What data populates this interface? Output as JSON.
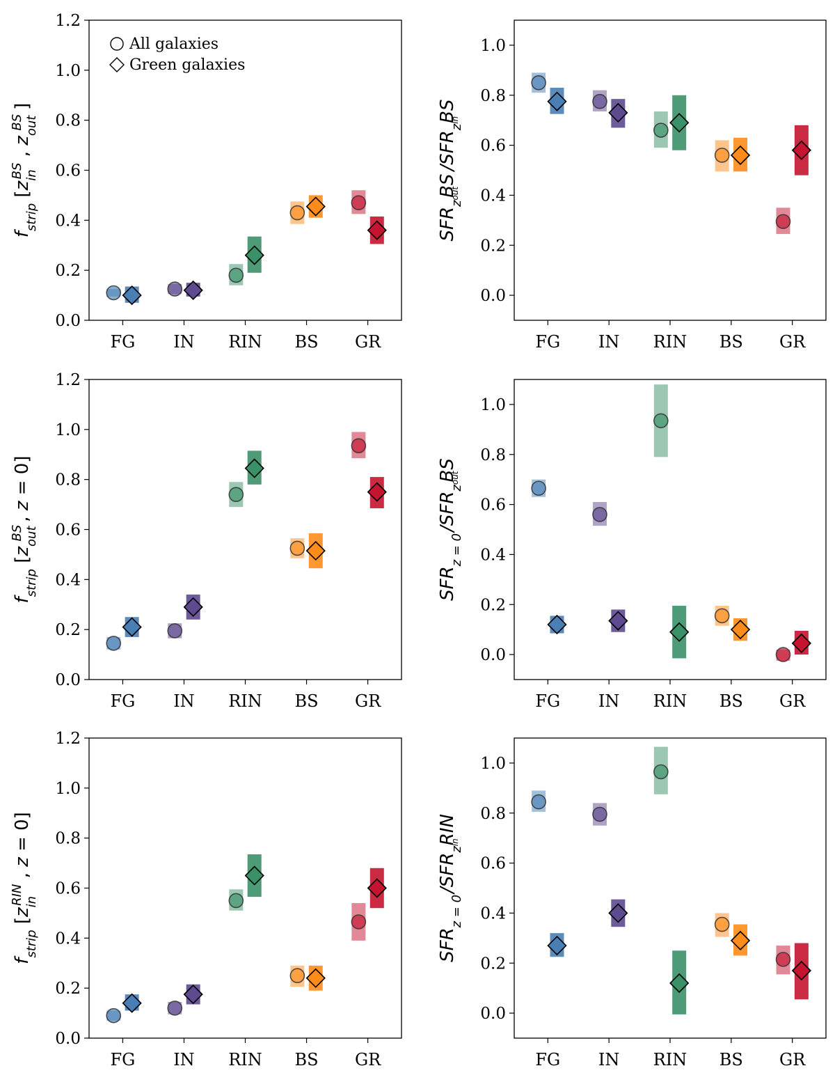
{
  "categories": [
    "FG",
    "IN",
    "RIN",
    "BS",
    "GR"
  ],
  "colors": {
    "FG": "#4a7fb5",
    "IN": "#5e4a8f",
    "RIN": "#3a9168",
    "BS": "#ff8c1a",
    "GR": "#c4142f"
  },
  "legend": {
    "all_label": "All galaxies",
    "green_label": "Green galaxies"
  },
  "chart_data": [
    {
      "type": "scatter",
      "panel": "top-left",
      "ylabel": "f_strip [z_in^BS , z_out^BS]",
      "ylim": [
        0.0,
        1.2
      ],
      "yticks": [
        "0.0",
        "0.2",
        "0.4",
        "0.6",
        "0.8",
        "1.0",
        "1.2"
      ],
      "categories": [
        "FG",
        "IN",
        "RIN",
        "BS",
        "GR"
      ],
      "legend_position": "top-left",
      "series": [
        {
          "name": "All galaxies",
          "marker": "circle",
          "values": [
            0.11,
            0.125,
            0.18,
            0.43,
            0.47
          ],
          "lo": [
            0.095,
            0.105,
            0.14,
            0.385,
            0.425
          ],
          "hi": [
            0.125,
            0.145,
            0.225,
            0.475,
            0.52
          ]
        },
        {
          "name": "Green galaxies",
          "marker": "diamond",
          "values": [
            0.1,
            0.12,
            0.26,
            0.455,
            0.36
          ],
          "lo": [
            0.07,
            0.095,
            0.19,
            0.41,
            0.305
          ],
          "hi": [
            0.135,
            0.15,
            0.335,
            0.5,
            0.415
          ]
        }
      ]
    },
    {
      "type": "scatter",
      "panel": "top-right",
      "ylabel": "SFR_{z_out^BS} / SFR_{z_in^BS}",
      "ylim": [
        -0.1,
        1.1
      ],
      "yticks": [
        "0.0",
        "0.2",
        "0.4",
        "0.6",
        "0.8",
        "1.0"
      ],
      "categories": [
        "FG",
        "IN",
        "RIN",
        "BS",
        "GR"
      ],
      "series": [
        {
          "name": "All galaxies",
          "marker": "circle",
          "values": [
            0.85,
            0.775,
            0.66,
            0.56,
            0.295
          ],
          "lo": [
            0.81,
            0.735,
            0.59,
            0.495,
            0.245
          ],
          "hi": [
            0.89,
            0.82,
            0.735,
            0.62,
            0.35
          ]
        },
        {
          "name": "Green galaxies",
          "marker": "diamond",
          "values": [
            0.775,
            0.73,
            0.69,
            0.56,
            0.58
          ],
          "lo": [
            0.725,
            0.67,
            0.58,
            0.495,
            0.48
          ],
          "hi": [
            0.83,
            0.785,
            0.8,
            0.63,
            0.68
          ]
        }
      ]
    },
    {
      "type": "scatter",
      "panel": "middle-left",
      "ylabel": "f_strip [z_out^BS, z = 0]",
      "ylim": [
        0.0,
        1.2
      ],
      "yticks": [
        "0.0",
        "0.2",
        "0.4",
        "0.6",
        "0.8",
        "1.0",
        "1.2"
      ],
      "categories": [
        "FG",
        "IN",
        "RIN",
        "BS",
        "GR"
      ],
      "series": [
        {
          "name": "All galaxies",
          "marker": "circle",
          "values": [
            0.145,
            0.195,
            0.74,
            0.525,
            0.935
          ],
          "lo": [
            0.12,
            0.165,
            0.69,
            0.485,
            0.885
          ],
          "hi": [
            0.17,
            0.225,
            0.79,
            0.565,
            0.99
          ]
        },
        {
          "name": "Green galaxies",
          "marker": "diamond",
          "values": [
            0.21,
            0.29,
            0.845,
            0.515,
            0.75
          ],
          "lo": [
            0.17,
            0.24,
            0.78,
            0.445,
            0.685
          ],
          "hi": [
            0.25,
            0.34,
            0.915,
            0.585,
            0.81
          ]
        }
      ]
    },
    {
      "type": "scatter",
      "panel": "middle-right",
      "ylabel": "SFR_{z=0} / SFR_{z_out^BS}",
      "ylim": [
        -0.1,
        1.1
      ],
      "yticks": [
        "0.0",
        "0.2",
        "0.4",
        "0.6",
        "0.8",
        "1.0"
      ],
      "categories": [
        "FG",
        "IN",
        "RIN",
        "BS",
        "GR"
      ],
      "series": [
        {
          "name": "All galaxies",
          "marker": "circle",
          "values": [
            0.665,
            0.56,
            0.935,
            0.155,
            0.0
          ],
          "lo": [
            0.63,
            0.515,
            0.79,
            0.115,
            -0.025
          ],
          "hi": [
            0.7,
            0.61,
            1.08,
            0.195,
            0.02
          ]
        },
        {
          "name": "Green galaxies",
          "marker": "diamond",
          "values": [
            0.12,
            0.135,
            0.09,
            0.1,
            0.045
          ],
          "lo": [
            0.085,
            0.09,
            -0.015,
            0.055,
            0.0
          ],
          "hi": [
            0.155,
            0.18,
            0.195,
            0.145,
            0.095
          ]
        }
      ]
    },
    {
      "type": "scatter",
      "panel": "bottom-left",
      "ylabel": "f_strip [z_in^RIN , z = 0]",
      "ylim": [
        0.0,
        1.2
      ],
      "yticks": [
        "0.0",
        "0.2",
        "0.4",
        "0.6",
        "0.8",
        "1.0",
        "1.2"
      ],
      "categories": [
        "FG",
        "IN",
        "RIN",
        "BS",
        "GR"
      ],
      "series": [
        {
          "name": "All galaxies",
          "marker": "circle",
          "values": [
            0.09,
            0.12,
            0.55,
            0.25,
            0.465
          ],
          "lo": [
            0.07,
            0.095,
            0.51,
            0.205,
            0.39
          ],
          "hi": [
            0.11,
            0.145,
            0.595,
            0.29,
            0.54
          ]
        },
        {
          "name": "Green galaxies",
          "marker": "diamond",
          "values": [
            0.14,
            0.175,
            0.65,
            0.24,
            0.6
          ],
          "lo": [
            0.11,
            0.135,
            0.565,
            0.19,
            0.52
          ],
          "hi": [
            0.175,
            0.215,
            0.735,
            0.29,
            0.68
          ]
        }
      ]
    },
    {
      "type": "scatter",
      "panel": "bottom-right",
      "ylabel": "SFR_{z=0} / SFR_{z_in^RIN}",
      "ylim": [
        -0.1,
        1.1
      ],
      "yticks": [
        "0.0",
        "0.2",
        "0.4",
        "0.6",
        "0.8",
        "1.0"
      ],
      "categories": [
        "FG",
        "IN",
        "RIN",
        "BS",
        "GR"
      ],
      "series": [
        {
          "name": "All galaxies",
          "marker": "circle",
          "values": [
            0.845,
            0.795,
            0.965,
            0.355,
            0.215
          ],
          "lo": [
            0.805,
            0.75,
            0.875,
            0.305,
            0.155
          ],
          "hi": [
            0.89,
            0.84,
            1.065,
            0.4,
            0.27
          ]
        },
        {
          "name": "Green galaxies",
          "marker": "diamond",
          "values": [
            0.27,
            0.4,
            0.12,
            0.29,
            0.17
          ],
          "lo": [
            0.225,
            0.345,
            -0.005,
            0.23,
            0.055
          ],
          "hi": [
            0.32,
            0.455,
            0.25,
            0.355,
            0.28
          ]
        }
      ]
    }
  ]
}
